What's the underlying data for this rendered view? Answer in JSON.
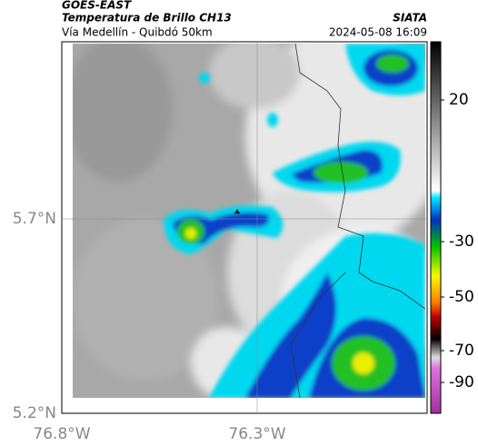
{
  "header": {
    "satellite": "GOES-EAST",
    "product": "Temperatura de Brillo CH13",
    "source": "SIATA",
    "region": "Vía Medellín - Quibdó 50km",
    "datetime": "2024-05-08 16:09"
  },
  "map": {
    "lat_labels": [
      "5.7°N",
      "5.2°N"
    ],
    "lon_labels": [
      "76.8°W",
      "76.3°W"
    ]
  },
  "colorbar": {
    "ticks": [
      "20",
      "-30",
      "-50",
      "-70",
      "-90"
    ]
  }
}
